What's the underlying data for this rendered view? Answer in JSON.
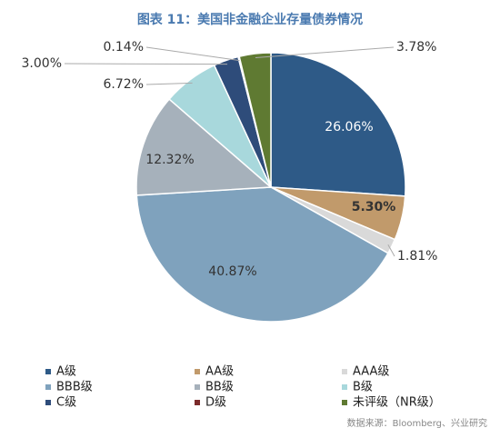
{
  "chart_data": {
    "type": "pie",
    "title": "图表 11：美国非金融企业存量债券情况",
    "source": "数据来源：Bloomberg、兴业研究",
    "categories": [
      "A级",
      "AA级",
      "AAA级",
      "BBB级",
      "BB级",
      "B级",
      "C级",
      "D级",
      "未评级（NR级）"
    ],
    "values": [
      26.06,
      5.3,
      1.81,
      40.87,
      12.32,
      6.72,
      3.0,
      0.14,
      3.78
    ],
    "value_labels": [
      "26.06%",
      "5.30%",
      "1.81%",
      "40.87%",
      "12.32%",
      "6.72%",
      "3.00%",
      "0.14%",
      "3.78%"
    ],
    "colors": [
      "#2e5a87",
      "#c19a6b",
      "#d9d9d9",
      "#7fa2bd",
      "#a6b1bb",
      "#a8d8dc",
      "#2e4c7a",
      "#7b2a2a",
      "#5f7a32"
    ]
  }
}
